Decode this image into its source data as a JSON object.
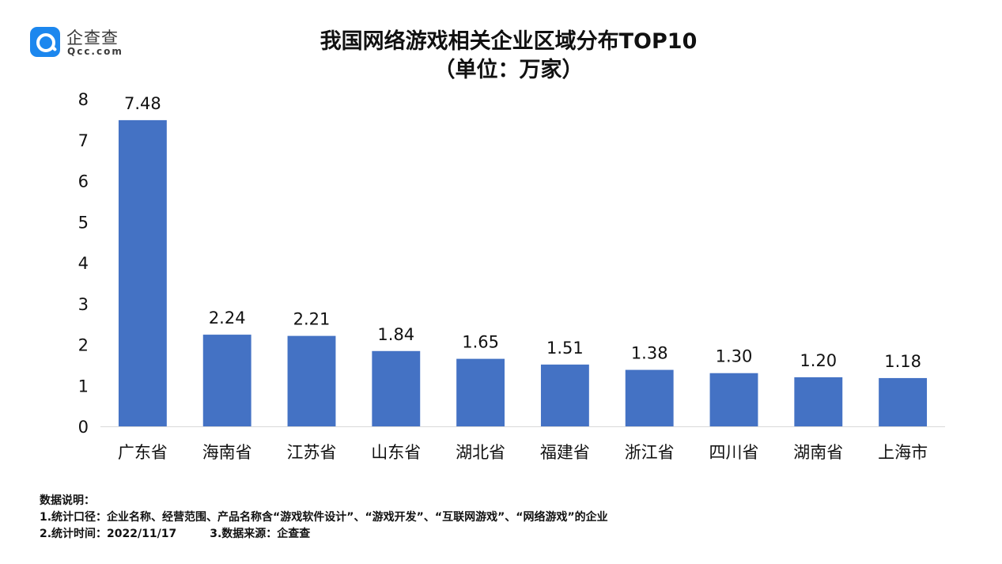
{
  "logo": {
    "name": "企查查",
    "domain": "Qcc.com"
  },
  "header": {
    "title_line1": "我国网络游戏相关企业区域分布TOP10",
    "title_line2": "（单位：万家）"
  },
  "chart_data": {
    "type": "bar",
    "title": "我国网络游戏相关企业区域分布TOP10",
    "subtitle": "（单位：万家）",
    "categories": [
      "广东省",
      "海南省",
      "江苏省",
      "山东省",
      "湖北省",
      "福建省",
      "浙江省",
      "四川省",
      "湖南省",
      "上海市"
    ],
    "values": [
      7.48,
      2.24,
      2.21,
      1.84,
      1.65,
      1.51,
      1.38,
      1.3,
      1.2,
      1.18
    ],
    "data_labels": [
      "7.48",
      "2.24",
      "2.21",
      "1.84",
      "1.65",
      "1.51",
      "1.38",
      "1.30",
      "1.20",
      "1.18"
    ],
    "yticks": [
      "0",
      "1",
      "2",
      "3",
      "4",
      "5",
      "6",
      "7",
      "8"
    ],
    "ylim": [
      0,
      8
    ],
    "xlabel": "",
    "ylabel": "",
    "bar_color": "#4472c4",
    "grid": false
  },
  "notes": {
    "heading": "数据说明：",
    "line1": "1.统计口径：企业名称、经营范围、产品名称含“游戏软件设计”、“游戏开发”、“互联网游戏”、“网络游戏”的企业",
    "line2_time": "2.统计时间：2022/11/17",
    "line2_source": "3.数据来源：企查查"
  },
  "colors": {
    "bar": "#4472c4",
    "logo_blue": "#1c87ee"
  }
}
